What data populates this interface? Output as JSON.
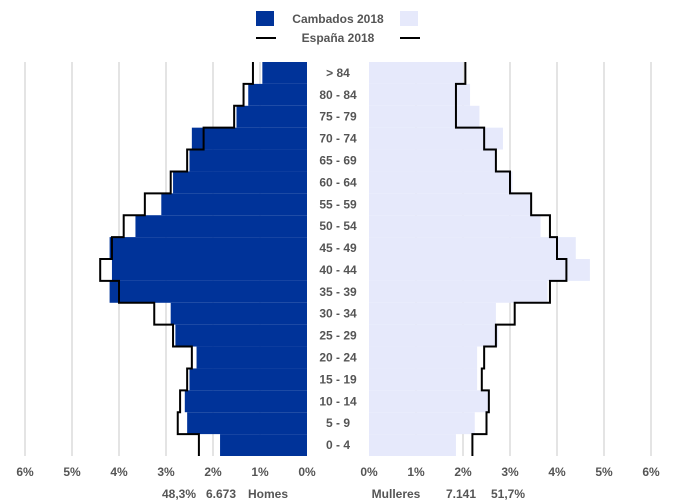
{
  "chart_data": {
    "type": "bar",
    "orientation": "population-pyramid",
    "legend": {
      "series_label": "Cambados 2018",
      "reference_label": "España 2018"
    },
    "categories": [
      "0 - 4",
      "5 - 9",
      "10 - 14",
      "15 - 19",
      "20 - 24",
      "25 - 29",
      "30 - 34",
      "35 - 39",
      "40 - 44",
      "45 - 49",
      "50 - 54",
      "55 - 59",
      "60 - 64",
      "65 - 69",
      "70 - 74",
      "75 - 79",
      "80 - 84",
      "> 84"
    ],
    "series": [
      {
        "name": "Cambados 2018",
        "side": "left",
        "values": [
          1.85,
          2.55,
          2.6,
          2.5,
          2.35,
          2.8,
          2.9,
          4.2,
          4.15,
          4.2,
          3.65,
          3.1,
          2.85,
          2.5,
          2.45,
          1.5,
          1.25,
          0.95
        ]
      },
      {
        "name": "Cambados 2018",
        "side": "right",
        "values": [
          1.85,
          2.25,
          2.55,
          2.3,
          2.3,
          2.75,
          2.7,
          3.8,
          4.7,
          4.4,
          3.65,
          3.45,
          3.05,
          2.7,
          2.85,
          2.35,
          2.15,
          2.0
        ]
      },
      {
        "name": "España 2018",
        "side": "left",
        "values": [
          2.3,
          2.75,
          2.7,
          2.55,
          2.45,
          2.85,
          3.25,
          4.0,
          4.4,
          4.15,
          3.9,
          3.45,
          2.9,
          2.55,
          2.2,
          1.55,
          1.35,
          1.15
        ]
      },
      {
        "name": "España 2018",
        "side": "right",
        "values": [
          2.2,
          2.5,
          2.55,
          2.4,
          2.45,
          2.7,
          3.1,
          3.85,
          4.2,
          4.0,
          3.85,
          3.45,
          3.0,
          2.7,
          2.45,
          1.85,
          1.85,
          2.05
        ]
      }
    ],
    "xlim": [
      0,
      6
    ],
    "left_ticks": [
      "6%",
      "5%",
      "4%",
      "3%",
      "2%",
      "1%",
      "0%"
    ],
    "right_ticks": [
      "0%",
      "1%",
      "2%",
      "3%",
      "4%",
      "5%",
      "6%"
    ],
    "grid": true,
    "colors": {
      "men": "#003399",
      "women": "#e6e9fb",
      "reference_line": "#000000",
      "grid": "#c8c8c8"
    }
  },
  "footer": {
    "men_pct": "48,3%",
    "men_count": "6.673",
    "men_label": "Homes",
    "women_label": "Mulleres",
    "women_count": "7.141",
    "women_pct": "51,7%"
  }
}
